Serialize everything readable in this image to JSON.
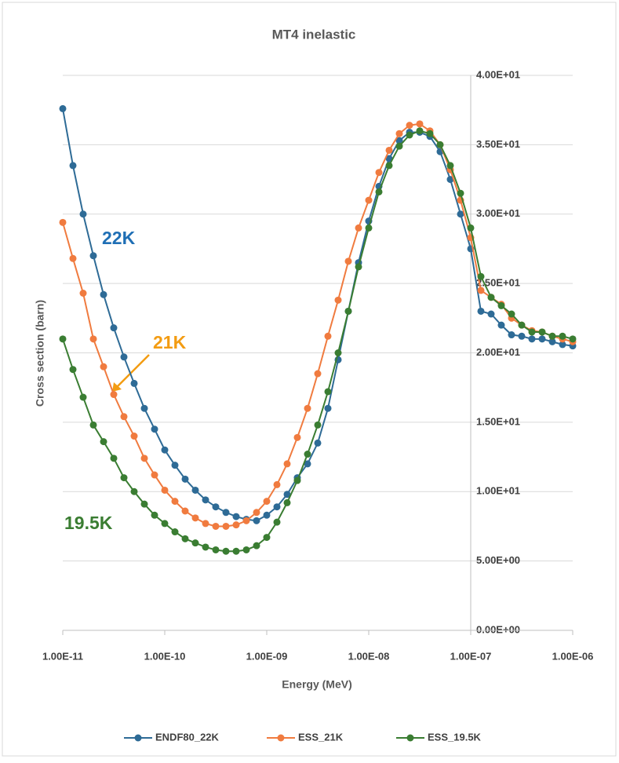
{
  "chart_data": {
    "type": "line",
    "title": "MT4 inelastic",
    "x_label": "Energy (MeV)",
    "y_label": "Cross section (barn)",
    "xscale": "log",
    "xlim": [
      1e-11,
      1e-06
    ],
    "xticks": [
      {
        "value": 1e-11,
        "label": "1.00E-11"
      },
      {
        "value": 1e-10,
        "label": "1.00E-10"
      },
      {
        "value": 1e-09,
        "label": "1.00E-09"
      },
      {
        "value": 1e-08,
        "label": "1.00E-08"
      },
      {
        "value": 1e-07,
        "label": "1.00E-07"
      },
      {
        "value": 1e-06,
        "label": "1.00E-06"
      }
    ],
    "ylim": [
      0,
      40
    ],
    "yticks": [
      {
        "value": 0,
        "label": "0.00E+00"
      },
      {
        "value": 5,
        "label": "5.00E+00"
      },
      {
        "value": 10,
        "label": "1.00E+01"
      },
      {
        "value": 15,
        "label": "1.50E+01"
      },
      {
        "value": 20,
        "label": "2.00E+01"
      },
      {
        "value": 25,
        "label": "2.50E+01"
      },
      {
        "value": 30,
        "label": "3.00E+01"
      },
      {
        "value": 35,
        "label": "3.50E+01"
      },
      {
        "value": 40,
        "label": "4.00E+01"
      }
    ],
    "y_axis_crosses_x": 1e-07,
    "grid": true,
    "legend": "bottom",
    "x": [
      1e-11,
      1.259e-11,
      1.585e-11,
      1.995e-11,
      2.512e-11,
      3.162e-11,
      3.981e-11,
      5.012e-11,
      6.31e-11,
      7.943e-11,
      1e-10,
      1.259e-10,
      1.585e-10,
      1.995e-10,
      2.512e-10,
      3.162e-10,
      3.981e-10,
      5.012e-10,
      6.31e-10,
      7.943e-10,
      1e-09,
      1.259e-09,
      1.585e-09,
      1.995e-09,
      2.512e-09,
      3.162e-09,
      3.981e-09,
      5.012e-09,
      6.31e-09,
      7.943e-09,
      1e-08,
      1.259e-08,
      1.585e-08,
      1.995e-08,
      2.512e-08,
      3.162e-08,
      3.981e-08,
      5.012e-08,
      6.31e-08,
      7.943e-08,
      1e-07,
      1.259e-07,
      1.585e-07,
      1.995e-07,
      2.512e-07,
      3.162e-07,
      3.981e-07,
      5.012e-07,
      6.31e-07,
      7.943e-07,
      1e-06
    ],
    "series": [
      {
        "name": "ENDF80_22K",
        "color": "#2e6b96",
        "values": [
          37.6,
          33.5,
          30.0,
          27.0,
          24.2,
          21.8,
          19.7,
          17.8,
          16.0,
          14.5,
          13.0,
          11.9,
          10.9,
          10.1,
          9.4,
          8.9,
          8.5,
          8.2,
          8.0,
          7.9,
          8.3,
          8.9,
          9.8,
          11.0,
          12.0,
          13.5,
          16.0,
          19.5,
          23.0,
          26.5,
          29.5,
          32.0,
          34.0,
          35.3,
          35.9,
          35.9,
          35.6,
          34.5,
          32.5,
          30.0,
          27.5,
          23.0,
          22.8,
          22.0,
          21.3,
          21.2,
          21.0,
          21.0,
          20.8,
          20.6,
          20.5
        ]
      },
      {
        "name": "ESS_21K",
        "color": "#f07b3f",
        "values": [
          29.4,
          26.8,
          24.3,
          21.0,
          19.0,
          17.0,
          15.4,
          14.0,
          12.4,
          11.2,
          10.1,
          9.3,
          8.6,
          8.1,
          7.7,
          7.5,
          7.5,
          7.6,
          7.9,
          8.5,
          9.3,
          10.5,
          12.0,
          13.9,
          16.0,
          18.5,
          21.2,
          23.8,
          26.6,
          29.0,
          31.0,
          33.0,
          34.6,
          35.8,
          36.4,
          36.5,
          36.0,
          35.0,
          33.2,
          31.0,
          28.3,
          24.5,
          24.0,
          23.5,
          22.5,
          22.0,
          21.6,
          21.5,
          21.2,
          21.0,
          20.8
        ]
      },
      {
        "name": "ESS_19.5K",
        "color": "#3a7d32",
        "values": [
          21.0,
          18.8,
          16.8,
          14.8,
          13.6,
          12.4,
          11.0,
          10.0,
          9.1,
          8.3,
          7.7,
          7.1,
          6.6,
          6.3,
          6.0,
          5.8,
          5.7,
          5.7,
          5.8,
          6.1,
          6.7,
          7.8,
          9.2,
          10.8,
          12.7,
          14.8,
          17.2,
          20.0,
          23.0,
          26.2,
          29.0,
          31.6,
          33.5,
          34.9,
          35.7,
          36.0,
          35.8,
          35.0,
          33.5,
          31.5,
          29.0,
          25.5,
          24.0,
          23.4,
          22.8,
          22.0,
          21.5,
          21.5,
          21.2,
          21.2,
          21.0
        ]
      }
    ],
    "annotations": [
      "22K",
      "21K",
      "19.5K"
    ]
  }
}
